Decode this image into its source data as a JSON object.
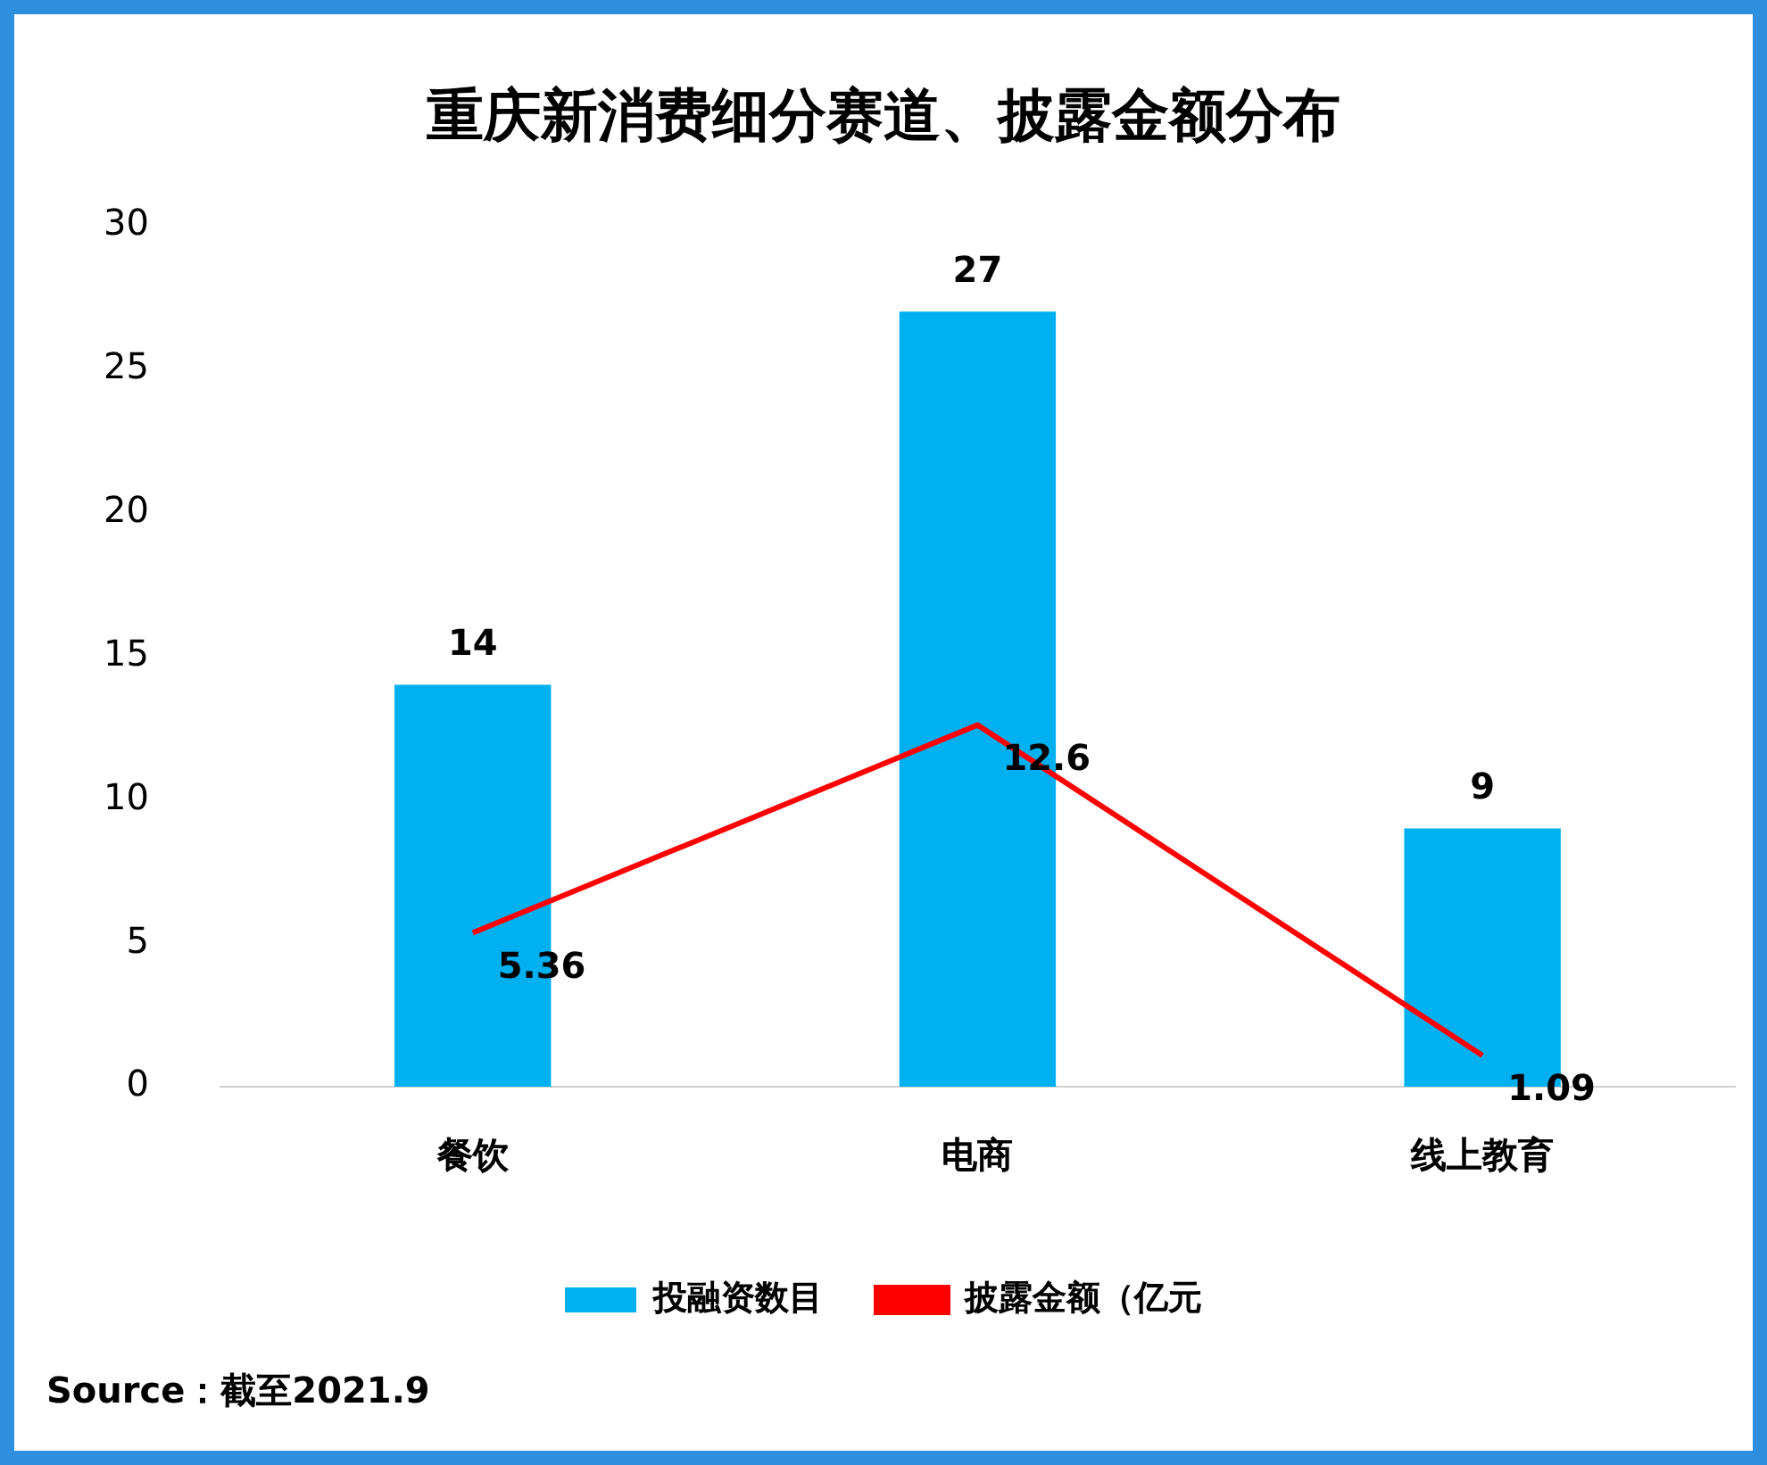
{
  "chart_data": {
    "type": "bar",
    "title": "重庆新消费细分赛道、披露金额分布",
    "categories": [
      "餐饮",
      "电商",
      "线上教育"
    ],
    "series": [
      {
        "name": "投融资数目",
        "color": "#00b0f0",
        "values": [
          14,
          27,
          9
        ]
      },
      {
        "name": "披露金额（亿元",
        "type": "line",
        "color": "#ff0000",
        "values": [
          5.36,
          12.6,
          1.09
        ]
      }
    ],
    "ylim": [
      0,
      30
    ],
    "yticks": [
      0,
      5,
      10,
      15,
      20,
      25,
      30
    ],
    "grid": false,
    "legend": "bottom",
    "marker": "none",
    "line_style": "solid",
    "data_labels": true,
    "annotations": [
      "Source：截至2021.9"
    ]
  }
}
